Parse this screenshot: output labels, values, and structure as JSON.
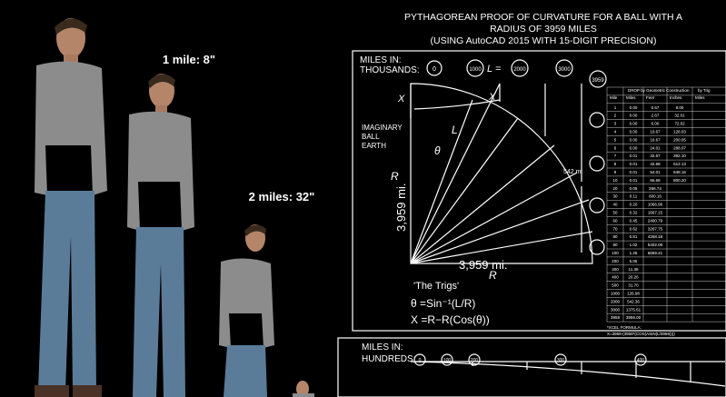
{
  "left": {
    "label1": "1 mile: 8\"",
    "label2": "2 miles: 32\""
  },
  "diagram": {
    "title": [
      "PYTHAGOREAN PROOF OF CURVATURE FOR A BALL WITH A",
      "RADIUS OF 3959 MILES",
      "(USING AutoCAD 2015 WITH 15-DIGIT PRECISION)"
    ],
    "miles_in": "MILES IN:",
    "thousands": "THOUSANDS:",
    "top_markers": [
      "0",
      "1000",
      "3000",
      "3959"
    ],
    "l_label": "L =",
    "l_value": "2000",
    "x_label": "X",
    "imaginary": [
      "IMAGINARY",
      "BALL",
      "EARTH"
    ],
    "theta": "θ",
    "l": "L",
    "r": "R",
    "radius_v": "3,959 mi.",
    "radius_h": "3,959 mi.",
    "drop": "542 mi",
    "trigs": "'The Trigs'",
    "formula1": "θ =Sin⁻¹(L/R)",
    "formula2": "X =R−R(Cos(θ))",
    "bottom_miles_in": "MILES IN:",
    "hundreds": "HUNDREDS:",
    "bottom_markers": [
      "0",
      "100",
      "200",
      "300",
      "400"
    ]
  },
  "table": {
    "group1": "DROP by Geometric Construction",
    "group2": "by Trig",
    "header": [
      "Mile",
      "Miles",
      "Feet",
      "Inches",
      "Miles"
    ],
    "rows": [
      [
        "1",
        "0.00",
        "0.67",
        "8.00"
      ],
      [
        "2",
        "0.00",
        "2.67",
        "32.01"
      ],
      [
        "3",
        "0.00",
        "6.00",
        "72.02"
      ],
      [
        "4",
        "0.00",
        "10.67",
        "128.03"
      ],
      [
        "5",
        "0.00",
        "16.67",
        "200.05"
      ],
      [
        "6",
        "0.00",
        "24.01",
        "288.07"
      ],
      [
        "7",
        "0.01",
        "32.67",
        "392.10"
      ],
      [
        "8",
        "0.01",
        "42.68",
        "512.13"
      ],
      [
        "9",
        "0.01",
        "54.01",
        "648.16"
      ],
      [
        "10",
        "0.01",
        "66.68",
        "800.20"
      ],
      [
        "20",
        "0.05",
        "266.74"
      ],
      [
        "30",
        "0.11",
        "600.16"
      ],
      [
        "40",
        "0.20",
        "1066.96"
      ],
      [
        "50",
        "0.32",
        "1667.15"
      ],
      [
        "60",
        "0.45",
        "2400.79"
      ],
      [
        "70",
        "0.62",
        "3267.75"
      ],
      [
        "80",
        "0.81",
        "4268.18"
      ],
      [
        "90",
        "1.02",
        "5402.06"
      ],
      [
        "100",
        "1.26",
        "6669.41"
      ],
      [
        "200",
        "5.06"
      ],
      [
        "300",
        "11.38"
      ],
      [
        "400",
        "20.26"
      ],
      [
        "500",
        "31.70"
      ],
      [
        "1000",
        "126.98"
      ],
      [
        "2000",
        "542.36"
      ],
      [
        "3000",
        "1375.61"
      ],
      [
        "3959",
        "3959.00"
      ]
    ],
    "formula_title": "*XCEL FORMULA:",
    "formula": "X=3959-(3959*(COS(ASIN(L/3959))))"
  }
}
